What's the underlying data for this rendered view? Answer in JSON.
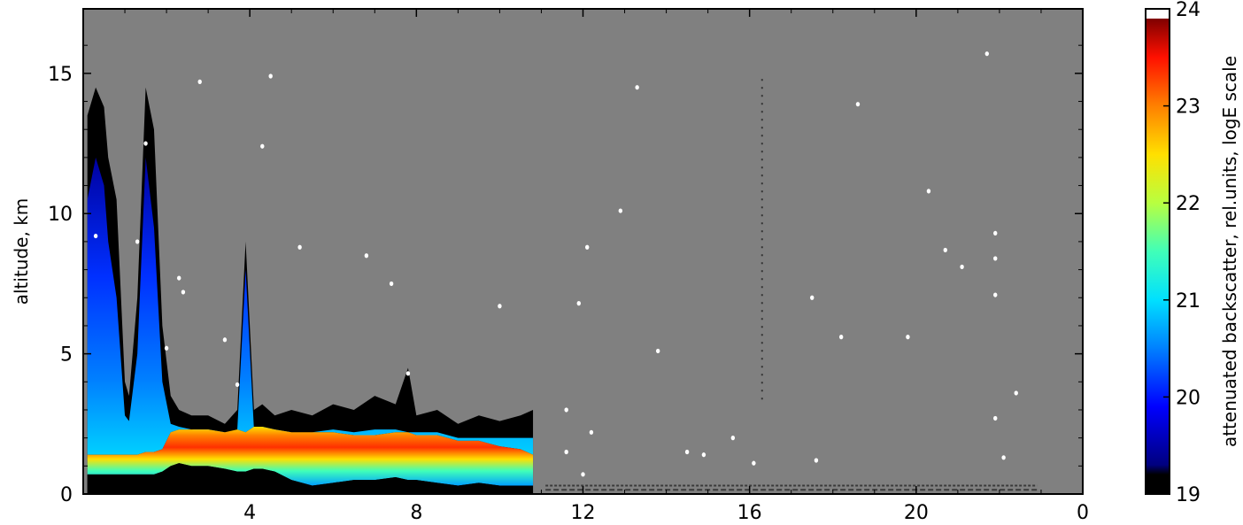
{
  "chart_data": {
    "type": "heatmap",
    "title": "",
    "xlabel": "",
    "ylabel": "altitude, km",
    "x_ticks": [
      "4",
      "8",
      "12",
      "16",
      "20",
      "0"
    ],
    "y_ticks": [
      "0",
      "5",
      "10",
      "15"
    ],
    "ylim": [
      0,
      17.3
    ],
    "xlim": [
      0,
      24
    ],
    "background_color": "#808080",
    "colorbar": {
      "label": "attenuated backscatter, rel.units, logE scale",
      "ticks": [
        "19",
        "20",
        "21",
        "22",
        "23",
        "24"
      ],
      "range": [
        19,
        24
      ],
      "colormap": "jet"
    },
    "profile_envelope": {
      "x_hours": [
        0.1,
        0.3,
        0.5,
        0.6,
        0.8,
        1.0,
        1.1,
        1.3,
        1.5,
        1.7,
        1.9,
        2.1,
        2.3,
        2.6,
        3.0,
        3.4,
        3.7,
        3.9,
        4.1,
        4.3,
        4.6,
        5.0,
        5.5,
        6.0,
        6.5,
        7.0,
        7.5,
        7.8,
        8.0,
        8.5,
        9.0,
        9.5,
        10.0,
        10.5,
        10.8
      ],
      "black_top_km": [
        13.5,
        14.5,
        13.8,
        12.0,
        10.5,
        4.0,
        3.5,
        7.0,
        14.5,
        13.0,
        6.0,
        3.5,
        3.0,
        2.8,
        2.8,
        2.5,
        3.0,
        9.0,
        3.0,
        3.2,
        2.8,
        3.0,
        2.8,
        3.2,
        3.0,
        3.5,
        3.2,
        4.5,
        2.8,
        3.0,
        2.5,
        2.8,
        2.6,
        2.8,
        3.0
      ],
      "blue_top_km": [
        10.5,
        12.0,
        11.0,
        9.0,
        7.0,
        2.8,
        2.6,
        5.0,
        12.0,
        9.5,
        4.0,
        2.5,
        2.4,
        2.3,
        2.2,
        2.2,
        2.3,
        8.0,
        2.3,
        2.3,
        2.2,
        2.2,
        2.2,
        2.3,
        2.2,
        2.3,
        2.3,
        2.2,
        2.2,
        2.2,
        2.0,
        2.0,
        2.0,
        2.0,
        2.0
      ],
      "aerosol_top_km": [
        1.4,
        1.4,
        1.4,
        1.4,
        1.4,
        1.4,
        1.4,
        1.4,
        1.5,
        1.5,
        1.6,
        2.2,
        2.3,
        2.3,
        2.3,
        2.2,
        2.3,
        2.2,
        2.4,
        2.4,
        2.3,
        2.2,
        2.2,
        2.2,
        2.1,
        2.1,
        2.2,
        2.2,
        2.1,
        2.1,
        1.9,
        1.9,
        1.7,
        1.6,
        1.4
      ],
      "aerosol_bottom_km": [
        0.7,
        0.7,
        0.7,
        0.7,
        0.7,
        0.7,
        0.7,
        0.7,
        0.7,
        0.7,
        0.8,
        1.0,
        1.1,
        1.0,
        1.0,
        0.9,
        0.8,
        0.8,
        0.9,
        0.9,
        0.8,
        0.5,
        0.3,
        0.4,
        0.5,
        0.5,
        0.6,
        0.5,
        0.5,
        0.4,
        0.3,
        0.4,
        0.3,
        0.3,
        0.3
      ],
      "data_end_hour": 10.9
    },
    "noise_points": [
      [
        0.3,
        9.2
      ],
      [
        1.5,
        12.5
      ],
      [
        1.3,
        9.0
      ],
      [
        2.3,
        7.7
      ],
      [
        2.4,
        7.2
      ],
      [
        2.0,
        5.2
      ],
      [
        2.8,
        14.7
      ],
      [
        3.4,
        5.5
      ],
      [
        3.7,
        3.9
      ],
      [
        4.3,
        12.4
      ],
      [
        4.5,
        14.9
      ],
      [
        5.2,
        8.8
      ],
      [
        6.8,
        8.5
      ],
      [
        7.4,
        7.5
      ],
      [
        7.8,
        4.3
      ],
      [
        10.0,
        6.7
      ],
      [
        11.6,
        3.0
      ],
      [
        11.9,
        6.8
      ],
      [
        12.1,
        8.8
      ],
      [
        12.2,
        2.2
      ],
      [
        11.6,
        1.5
      ],
      [
        12.0,
        0.7
      ],
      [
        12.9,
        10.1
      ],
      [
        13.3,
        14.5
      ],
      [
        13.8,
        5.1
      ],
      [
        14.5,
        1.5
      ],
      [
        14.9,
        1.4
      ],
      [
        15.6,
        2.0
      ],
      [
        16.1,
        1.1
      ],
      [
        17.5,
        7.0
      ],
      [
        17.6,
        1.2
      ],
      [
        18.2,
        5.6
      ],
      [
        18.6,
        13.9
      ],
      [
        19.8,
        5.6
      ],
      [
        20.3,
        10.8
      ],
      [
        20.7,
        8.7
      ],
      [
        21.1,
        8.1
      ],
      [
        21.7,
        15.7
      ],
      [
        21.9,
        9.3
      ],
      [
        21.9,
        8.4
      ],
      [
        21.9,
        7.1
      ],
      [
        21.9,
        2.7
      ],
      [
        22.1,
        1.3
      ],
      [
        22.4,
        3.6
      ]
    ]
  }
}
